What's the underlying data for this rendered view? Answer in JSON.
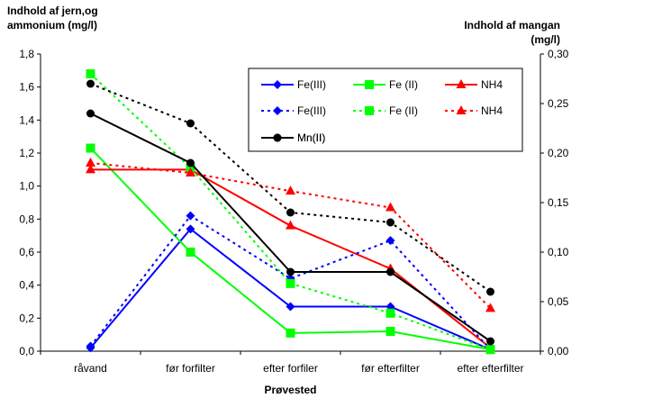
{
  "chart_data": {
    "type": "line",
    "categories": [
      "råvand",
      "før forfilter",
      "efter forfiler",
      "før efterfilter",
      "efter efterfilter"
    ],
    "xlabel": "Prøvested",
    "ylabel_left": [
      "Indhold af jern,og",
      "ammonium (mg/l)"
    ],
    "ylabel_right": [
      "Indhold af mangan",
      "(mg/l)"
    ],
    "ylim_left": [
      0,
      1.8
    ],
    "ylim_right": [
      0,
      0.3
    ],
    "yticks_left": [
      "0,0",
      "0,2",
      "0,4",
      "0,6",
      "0,8",
      "1,0",
      "1,2",
      "1,4",
      "1,6",
      "1,8"
    ],
    "yticks_right": [
      "0,00",
      "0,05",
      "0,10",
      "0,15",
      "0,20",
      "0,25",
      "0,30"
    ],
    "grid": false,
    "legend_position": "top-right",
    "series": [
      {
        "name": "Fe(III)",
        "axis": "left",
        "color": "#0000ff",
        "dash": "solid",
        "marker": "diamond",
        "values": [
          0.02,
          0.74,
          0.27,
          0.27,
          0.01
        ]
      },
      {
        "name": "Fe (II)",
        "axis": "left",
        "color": "#00ff00",
        "dash": "solid",
        "marker": "square",
        "values": [
          1.23,
          0.6,
          0.11,
          0.12,
          0.01
        ]
      },
      {
        "name": "NH4",
        "axis": "left",
        "color": "#ff0000",
        "dash": "solid",
        "marker": "triangle",
        "values": [
          1.1,
          1.1,
          0.76,
          0.5,
          0.02
        ]
      },
      {
        "name": "Fe(III)",
        "axis": "left",
        "color": "#0000ff",
        "dash": "dotted",
        "marker": "diamond",
        "values": [
          0.03,
          0.82,
          0.44,
          0.67,
          0.01
        ]
      },
      {
        "name": "Fe (II)",
        "axis": "left",
        "color": "#00ff00",
        "dash": "dotted",
        "marker": "square",
        "values": [
          1.68,
          1.11,
          0.41,
          0.23,
          0.01
        ]
      },
      {
        "name": "NH4",
        "axis": "left",
        "color": "#ff0000",
        "dash": "dotted",
        "marker": "triangle",
        "values": [
          1.14,
          1.08,
          0.97,
          0.87,
          0.26
        ]
      },
      {
        "name": "Mn(II)",
        "axis": "right",
        "color": "#000000",
        "dash": "solid",
        "marker": "circle",
        "values": [
          0.24,
          0.19,
          0.08,
          0.08,
          0.01
        ]
      },
      {
        "name": "Mn(II)",
        "axis": "right",
        "color": "#000000",
        "dash": "dotted",
        "marker": "circle",
        "values": [
          0.27,
          0.23,
          0.14,
          0.13,
          0.06
        ]
      }
    ]
  }
}
